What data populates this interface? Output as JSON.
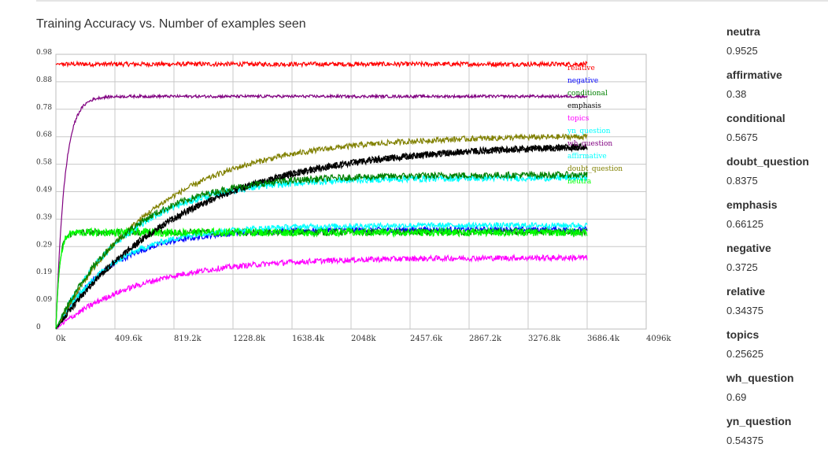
{
  "chart_data": {
    "type": "line",
    "title": "Training Accuracy vs. Number of examples seen",
    "x_tick_labels": [
      "0k",
      "409.6k",
      "819.2k",
      "1228.8k",
      "1638.4k",
      "2048k",
      "2457.6k",
      "2867.2k",
      "3276.8k",
      "3686.4k",
      "4096k"
    ],
    "y_tick_labels": [
      "0",
      "0.09",
      "0.19",
      "0.29",
      "0.39",
      "0.49",
      "0.58",
      "0.68",
      "0.78",
      "0.88",
      "0.98"
    ],
    "xlim": [
      0,
      4096
    ],
    "ylim": [
      0,
      0.98
    ],
    "grid": true,
    "legend_position": "inside-right",
    "series": [
      {
        "name": "relative",
        "color": "#ff0000",
        "start": 0.95,
        "final": 0.945,
        "rise": 0.0,
        "noise": 0.008
      },
      {
        "name": "negative",
        "color": "#0000ff",
        "start": 0.0,
        "final": 0.355,
        "rise": 380,
        "noise": 0.01
      },
      {
        "name": "conditional",
        "color": "#008000",
        "start": 0.0,
        "final": 0.345,
        "rise": 25,
        "noise": 0.012
      },
      {
        "name": "emphasis",
        "color": "#000000",
        "start": 0.0,
        "final": 0.66,
        "rise": 900,
        "noise": 0.012
      },
      {
        "name": "topics",
        "color": "#ff00ff",
        "start": 0.0,
        "final": 0.255,
        "rise": 600,
        "noise": 0.01
      },
      {
        "name": "yn_question",
        "color": "#00ffff",
        "start": 0.0,
        "final": 0.54,
        "rise": 500,
        "noise": 0.012
      },
      {
        "name": "wh_question",
        "color": "#800080",
        "start": 0.0,
        "final": 0.83,
        "rise": 60,
        "noise": 0.005
      },
      {
        "name": "affirmative",
        "color": "#00ffff",
        "start": 0.0,
        "final": 0.37,
        "rise": 400,
        "noise": 0.01
      },
      {
        "name": "doubt_question",
        "color": "#808000",
        "start": 0.0,
        "final": 0.69,
        "rise": 700,
        "noise": 0.01
      },
      {
        "name": "neutra",
        "color": "#00ff00",
        "start": 0.0,
        "final": 0.345,
        "rise": 25,
        "noise": 0.014
      }
    ],
    "legend_overlay_series": [
      {
        "name": "emphasis",
        "color": "#000000",
        "start": 0.0,
        "final": 0.66,
        "rise": 900,
        "noise": 0.012
      },
      {
        "name": "conditional",
        "color": "#008000",
        "start": 0.0,
        "final": 0.55,
        "rise": 500,
        "noise": 0.012
      }
    ],
    "x_end": 3686.4
  },
  "stats": [
    {
      "name": "neutra",
      "value": "0.9525"
    },
    {
      "name": "affirmative",
      "value": "0.38"
    },
    {
      "name": "conditional",
      "value": "0.5675"
    },
    {
      "name": "doubt_question",
      "value": "0.8375"
    },
    {
      "name": "emphasis",
      "value": "0.66125"
    },
    {
      "name": "negative",
      "value": "0.3725"
    },
    {
      "name": "relative",
      "value": "0.34375"
    },
    {
      "name": "topics",
      "value": "0.25625"
    },
    {
      "name": "wh_question",
      "value": "0.69"
    },
    {
      "name": "yn_question",
      "value": "0.54375"
    }
  ]
}
